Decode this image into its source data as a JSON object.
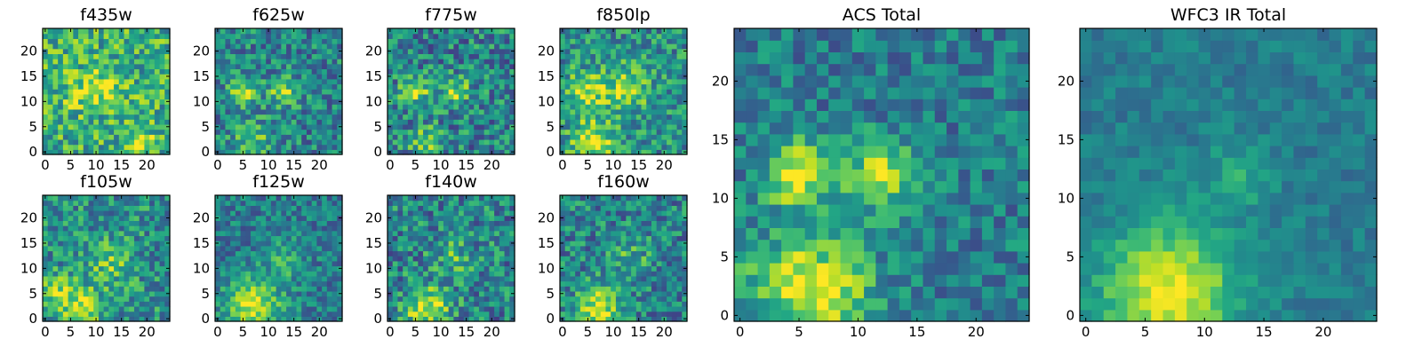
{
  "chart_data": [
    {
      "type": "heatmap",
      "title": "f435w",
      "grid_size": 25,
      "colormap": "viridis",
      "seed": 11,
      "hotspots": [
        [
          12,
          13,
          3,
          0.25
        ],
        [
          19,
          2,
          2,
          0.3
        ],
        [
          6,
          12,
          3,
          0.15
        ]
      ],
      "base": 0.62,
      "noise": 0.55,
      "xticks": [
        0,
        5,
        10,
        15,
        20
      ],
      "yticks": [
        0,
        5,
        10,
        15,
        20
      ],
      "xlim": [
        0,
        24
      ],
      "ylim": [
        0,
        24
      ]
    },
    {
      "type": "heatmap",
      "title": "f625w",
      "grid_size": 25,
      "colormap": "viridis",
      "seed": 23,
      "hotspots": [
        [
          5,
          12,
          2,
          0.45
        ],
        [
          13,
          12,
          2,
          0.4
        ],
        [
          7,
          2,
          3,
          0.25
        ]
      ],
      "base": 0.45,
      "noise": 0.5,
      "xticks": [
        0,
        5,
        10,
        15,
        20
      ],
      "yticks": [
        0,
        5,
        10,
        15,
        20
      ],
      "xlim": [
        0,
        24
      ],
      "ylim": [
        0,
        24
      ]
    },
    {
      "type": "heatmap",
      "title": "f775w",
      "grid_size": 25,
      "colormap": "viridis",
      "seed": 37,
      "hotspots": [
        [
          5,
          12,
          2,
          0.4
        ],
        [
          13,
          12,
          2,
          0.35
        ],
        [
          7,
          2,
          2,
          0.4
        ]
      ],
      "base": 0.45,
      "noise": 0.55,
      "xticks": [
        0,
        5,
        10,
        15,
        20
      ],
      "yticks": [
        0,
        5,
        10,
        15,
        20
      ],
      "xlim": [
        0,
        24
      ],
      "ylim": [
        0,
        24
      ]
    },
    {
      "type": "heatmap",
      "title": "f850lp",
      "grid_size": 25,
      "colormap": "viridis",
      "seed": 41,
      "hotspots": [
        [
          5,
          12,
          3,
          0.35
        ],
        [
          13,
          13,
          3,
          0.35
        ],
        [
          6,
          2,
          3,
          0.45
        ]
      ],
      "base": 0.5,
      "noise": 0.5,
      "xticks": [
        0,
        5,
        10,
        15,
        20
      ],
      "yticks": [
        0,
        5,
        10,
        15,
        20
      ],
      "xlim": [
        0,
        24
      ],
      "ylim": [
        0,
        24
      ]
    },
    {
      "type": "heatmap",
      "title": "f105w",
      "grid_size": 25,
      "colormap": "viridis",
      "seed": 53,
      "hotspots": [
        [
          7,
          2,
          3,
          0.45
        ],
        [
          13,
          11,
          3,
          0.25
        ],
        [
          2,
          6,
          2,
          0.3
        ]
      ],
      "base": 0.5,
      "noise": 0.5,
      "xticks": [
        0,
        5,
        10,
        15,
        20
      ],
      "yticks": [
        0,
        5,
        10,
        15,
        20
      ],
      "xlim": [
        0,
        24
      ],
      "ylim": [
        0,
        24
      ]
    },
    {
      "type": "heatmap",
      "title": "f125w",
      "grid_size": 25,
      "colormap": "viridis",
      "seed": 67,
      "hotspots": [
        [
          7,
          2,
          4,
          0.5
        ],
        [
          13,
          12,
          3,
          0.2
        ]
      ],
      "base": 0.42,
      "noise": 0.4,
      "xticks": [
        0,
        5,
        10,
        15,
        20
      ],
      "yticks": [
        0,
        5,
        10,
        15,
        20
      ],
      "xlim": [
        0,
        24
      ],
      "ylim": [
        0,
        24
      ]
    },
    {
      "type": "heatmap",
      "title": "f140w",
      "grid_size": 25,
      "colormap": "viridis",
      "seed": 79,
      "hotspots": [
        [
          7,
          2,
          3,
          0.5
        ],
        [
          13,
          12,
          3,
          0.2
        ]
      ],
      "base": 0.45,
      "noise": 0.55,
      "xticks": [
        0,
        5,
        10,
        15,
        20
      ],
      "yticks": [
        0,
        5,
        10,
        15,
        20
      ],
      "xlim": [
        0,
        24
      ],
      "ylim": [
        0,
        24
      ]
    },
    {
      "type": "heatmap",
      "title": "f160w",
      "grid_size": 25,
      "colormap": "viridis",
      "seed": 83,
      "hotspots": [
        [
          7,
          2,
          3,
          0.5
        ],
        [
          13,
          12,
          3,
          0.2
        ]
      ],
      "base": 0.45,
      "noise": 0.5,
      "xticks": [
        0,
        5,
        10,
        15,
        20
      ],
      "yticks": [
        0,
        5,
        10,
        15,
        20
      ],
      "xlim": [
        0,
        24
      ],
      "ylim": [
        0,
        24
      ]
    },
    {
      "type": "heatmap",
      "title": "ACS Total",
      "grid_size": 25,
      "colormap": "viridis",
      "seed": 97,
      "hotspots": [
        [
          5,
          12,
          2,
          0.55
        ],
        [
          12,
          12,
          2,
          0.5
        ],
        [
          7,
          2,
          3,
          0.5
        ],
        [
          3,
          3,
          3,
          0.2
        ]
      ],
      "base": 0.42,
      "noise": 0.38,
      "xticks": [
        0,
        5,
        10,
        15,
        20
      ],
      "yticks": [
        0,
        5,
        10,
        15,
        20
      ],
      "xlim": [
        0,
        24
      ],
      "ylim": [
        0,
        24
      ]
    },
    {
      "type": "heatmap",
      "title": "WFC3 IR Total",
      "grid_size": 25,
      "colormap": "viridis",
      "seed": 101,
      "hotspots": [
        [
          7,
          2,
          4,
          0.55
        ],
        [
          13,
          12,
          2,
          0.2
        ]
      ],
      "base": 0.42,
      "noise": 0.2,
      "xticks": [
        0,
        5,
        10,
        15,
        20
      ],
      "yticks": [
        0,
        5,
        10,
        15,
        20
      ],
      "xlim": [
        0,
        24
      ],
      "ylim": [
        0,
        24
      ]
    }
  ]
}
